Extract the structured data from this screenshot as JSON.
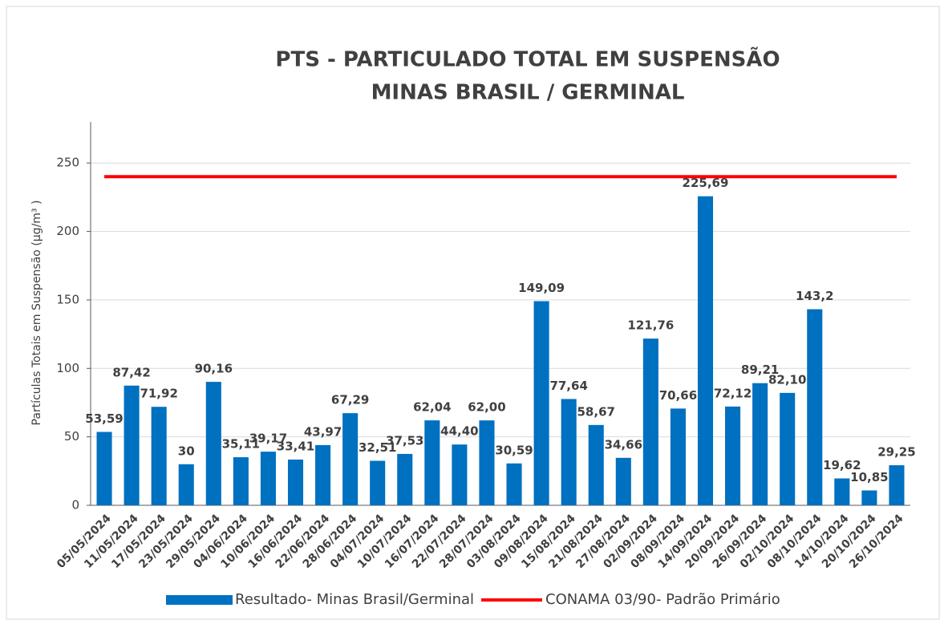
{
  "chart_data": {
    "type": "bar",
    "title": [
      "PTS - PARTICULADO TOTAL EM SUSPENSÃO",
      "MINAS BRASIL / GERMINAL"
    ],
    "y_label": "Partículas Totais em Suspensão (µg/m³ )",
    "categories": [
      "05/05/2024",
      "11/05/2024",
      "17/05/2024",
      "23/05/2024",
      "29/05/2024",
      "04/06/2024",
      "10/06/2024",
      "16/06/2024",
      "22/06/2024",
      "28/06/2024",
      "04/07/2024",
      "10/07/2024",
      "16/07/2024",
      "22/07/2024",
      "28/07/2024",
      "03/08/2024",
      "09/08/2024",
      "15/08/2024",
      "21/08/2024",
      "27/08/2024",
      "02/09/2024",
      "08/09/2024",
      "14/09/2024",
      "20/09/2024",
      "26/09/2024",
      "02/10/2024",
      "08/10/2024",
      "14/10/2024",
      "20/10/2024",
      "26/10/2024"
    ],
    "series": [
      {
        "name": "Resultado- Minas Brasil/Germinal",
        "type": "bar",
        "color": "#0070c0",
        "values": [
          53.59,
          87.42,
          71.92,
          30,
          90.16,
          35.11,
          39.17,
          33.41,
          43.97,
          67.29,
          32.51,
          37.53,
          62.04,
          44.4,
          62.0,
          30.59,
          149.09,
          77.64,
          58.67,
          34.66,
          121.76,
          70.66,
          225.69,
          72.12,
          89.21,
          82.1,
          143.2,
          19.62,
          10.85,
          29.25
        ],
        "value_labels": [
          "53,59",
          "87,42",
          "71,92",
          "30",
          "90,16",
          "35,11",
          "39,17",
          "33,41",
          "43,97",
          "67,29",
          "32,51",
          "37,53",
          "62,04",
          "44,40",
          "62,00",
          "30,59",
          "149,09",
          "77,64",
          "58,67",
          "34,66",
          "121,76",
          "70,66",
          "225,69",
          "72,12",
          "89,21",
          "82,10",
          "143,2",
          "19,62",
          "10,85",
          "29,25"
        ]
      },
      {
        "name": "CONAMA 03/90- Padrão Primário",
        "type": "line",
        "color": "#ff0000",
        "values": [
          240,
          240,
          240,
          240,
          240,
          240,
          240,
          240,
          240,
          240,
          240,
          240,
          240,
          240,
          240,
          240,
          240,
          240,
          240,
          240,
          240,
          240,
          240,
          240,
          240,
          240,
          240,
          240,
          240,
          240
        ]
      }
    ],
    "ylim": [
      0,
      280
    ],
    "yticks": [
      0,
      50,
      100,
      150,
      200,
      250
    ],
    "grid": true
  }
}
